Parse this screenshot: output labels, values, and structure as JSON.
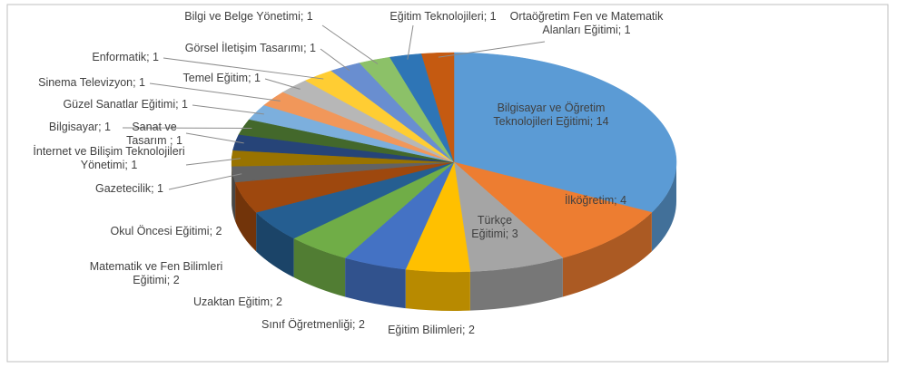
{
  "chart_data": {
    "type": "pie3d",
    "values": [
      14,
      4,
      3,
      2,
      2,
      2,
      2,
      2,
      1,
      1,
      1,
      1,
      1,
      1,
      1,
      1,
      1,
      1,
      1,
      1
    ],
    "value_labels": [
      "Bilgisayar ve Öğretim Teknolojileri Eğitimi; 14",
      "İlköğretim; 4",
      "Türkçe Eğitimi; 3",
      "Eğitim Bilimleri; 2",
      "Sınıf Öğretmenliği; 2",
      "Uzaktan Eğitim; 2",
      "Matematik ve Fen Bilimleri Eğitimi; 2",
      "Okul Öncesi Eğitimi; 2",
      "Gazetecilik; 1",
      "İnternet ve Bilişim Teknolojileri Yönetimi; 1",
      "Sanat ve Tasarım ; 1",
      "Bilgisayar; 1",
      "Güzel Sanatlar Eğitimi; 1",
      "Sinema Televizyon; 1",
      "Temel Eğitim; 1",
      "Enformatik; 1",
      "Görsel İletişim Tasarımı; 1",
      "Bilgi ve Belge Yönetimi; 1",
      "Eğitim Teknolojileri; 1",
      "Ortaöğretim Fen ve Matematik Alanları Eğitimi; 1"
    ],
    "colors": [
      "#5b9bd5",
      "#ed7d31",
      "#a5a5a5",
      "#ffc000",
      "#4472c4",
      "#70ad47",
      "#255e91",
      "#9e480e",
      "#636363",
      "#997300",
      "#264478",
      "#43682b",
      "#7cafdd",
      "#f1975a",
      "#b7b7b7",
      "#ffcd33",
      "#698ed0",
      "#8cc168",
      "#2e75b6",
      "#c55a11"
    ]
  }
}
